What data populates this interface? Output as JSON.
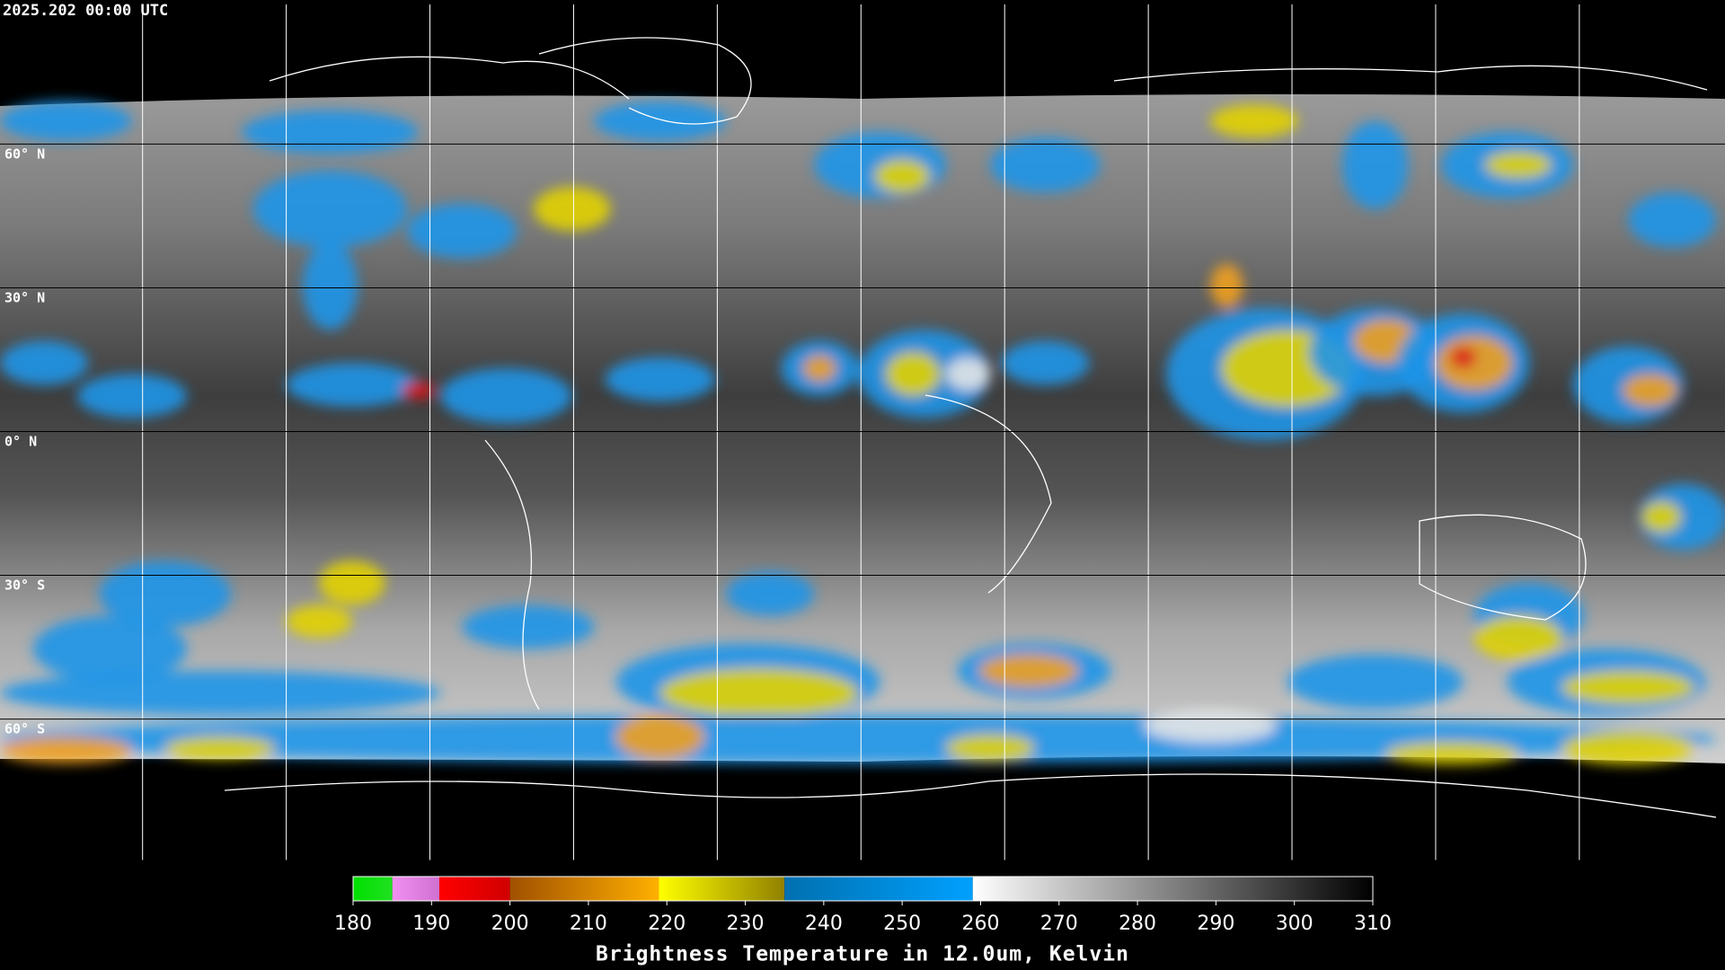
{
  "header": {
    "title": "2025.202 00:00 UTC"
  },
  "map": {
    "latitude_labels": [
      "60° N",
      "30° N",
      "0° N",
      "30° S",
      "60° S"
    ]
  },
  "colorbar": {
    "ticks": [
      180,
      190,
      200,
      210,
      220,
      230,
      240,
      250,
      260,
      270,
      280,
      290,
      300,
      310
    ],
    "segments": [
      {
        "from": 180,
        "to": 185,
        "colors": [
          "#00e000",
          "#20e020"
        ]
      },
      {
        "from": 185,
        "to": 191,
        "colors": [
          "#f090f0",
          "#d070d0"
        ]
      },
      {
        "from": 191,
        "to": 200,
        "colors": [
          "#ff0000",
          "#d00000"
        ]
      },
      {
        "from": 200,
        "to": 219,
        "colors": [
          "#a05000",
          "#ffb000"
        ]
      },
      {
        "from": 219,
        "to": 235,
        "colors": [
          "#ffff00",
          "#908000"
        ]
      },
      {
        "from": 235,
        "to": 259,
        "colors": [
          "#0070b0",
          "#00a0ff"
        ]
      },
      {
        "from": 259,
        "to": 310,
        "colors": [
          "#ffffff",
          "#000000"
        ]
      }
    ],
    "label": "Brightness Temperature in 12.0um, Kelvin"
  }
}
